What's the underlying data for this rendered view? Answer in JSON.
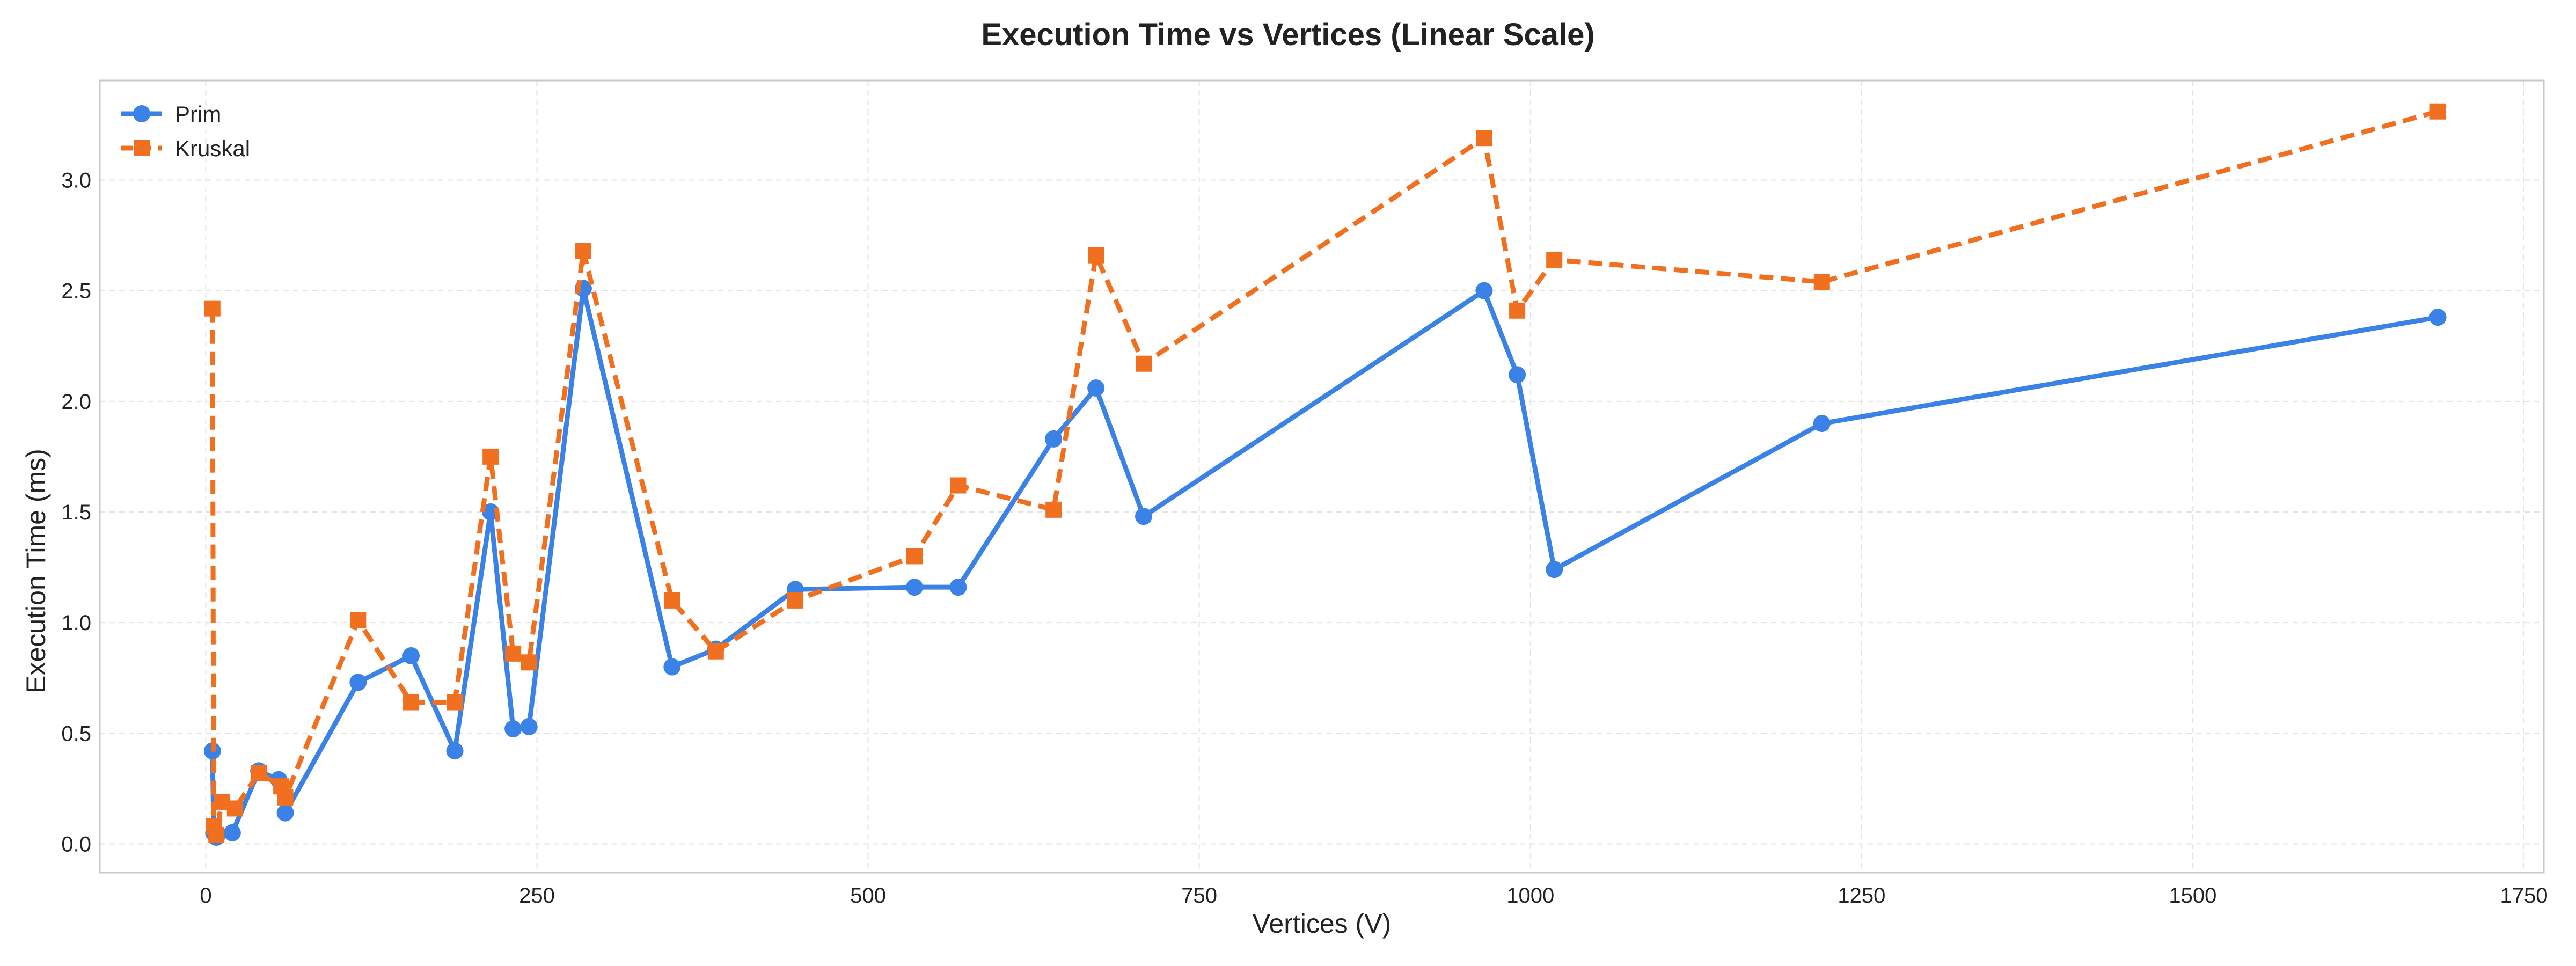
{
  "chart_data": {
    "type": "line",
    "title": "Execution Time vs Vertices (Linear Scale)",
    "xlabel": "Vertices (V)",
    "ylabel": "Execution Time (ms)",
    "xlim": [
      -80,
      1765
    ],
    "ylim": [
      -0.13,
      3.45
    ],
    "xticks": [
      0,
      250,
      500,
      750,
      1000,
      1250,
      1500,
      1750
    ],
    "yticks": [
      0.0,
      0.5,
      1.0,
      1.5,
      2.0,
      2.5,
      3.0
    ],
    "grid": true,
    "legend_position": "top-left",
    "series": [
      {
        "name": "Prim",
        "color": "#3b82e6",
        "marker": "circle",
        "line_style": "solid",
        "points": [
          [
            5,
            0.42
          ],
          [
            6,
            0.05
          ],
          [
            8,
            0.03
          ],
          [
            20,
            0.05
          ],
          [
            40,
            0.33
          ],
          [
            55,
            0.29
          ],
          [
            60,
            0.14
          ],
          [
            115,
            0.73
          ],
          [
            155,
            0.85
          ],
          [
            188,
            0.42
          ],
          [
            215,
            1.5
          ],
          [
            232,
            0.52
          ],
          [
            244,
            0.53
          ],
          [
            285,
            2.51
          ],
          [
            352,
            0.8
          ],
          [
            385,
            0.88
          ],
          [
            445,
            1.15
          ],
          [
            535,
            1.16
          ],
          [
            568,
            1.16
          ],
          [
            640,
            1.83
          ],
          [
            672,
            2.06
          ],
          [
            708,
            1.48
          ],
          [
            965,
            2.5
          ],
          [
            990,
            2.12
          ],
          [
            1018,
            1.24
          ],
          [
            1220,
            1.9
          ],
          [
            1685,
            2.38
          ]
        ]
      },
      {
        "name": "Kruskal",
        "color": "#f07020",
        "marker": "square",
        "line_style": "dashed",
        "points": [
          [
            5,
            2.42
          ],
          [
            6,
            0.08
          ],
          [
            8,
            0.04
          ],
          [
            12,
            0.19
          ],
          [
            22,
            0.16
          ],
          [
            40,
            0.32
          ],
          [
            57,
            0.26
          ],
          [
            60,
            0.21
          ],
          [
            115,
            1.01
          ],
          [
            155,
            0.64
          ],
          [
            188,
            0.64
          ],
          [
            215,
            1.75
          ],
          [
            232,
            0.86
          ],
          [
            244,
            0.82
          ],
          [
            285,
            2.68
          ],
          [
            352,
            1.1
          ],
          [
            385,
            0.87
          ],
          [
            445,
            1.1
          ],
          [
            535,
            1.3
          ],
          [
            568,
            1.62
          ],
          [
            640,
            1.51
          ],
          [
            672,
            2.66
          ],
          [
            708,
            2.17
          ],
          [
            965,
            3.19
          ],
          [
            990,
            2.41
          ],
          [
            1018,
            2.64
          ],
          [
            1220,
            2.54
          ],
          [
            1685,
            3.31
          ]
        ]
      }
    ]
  }
}
